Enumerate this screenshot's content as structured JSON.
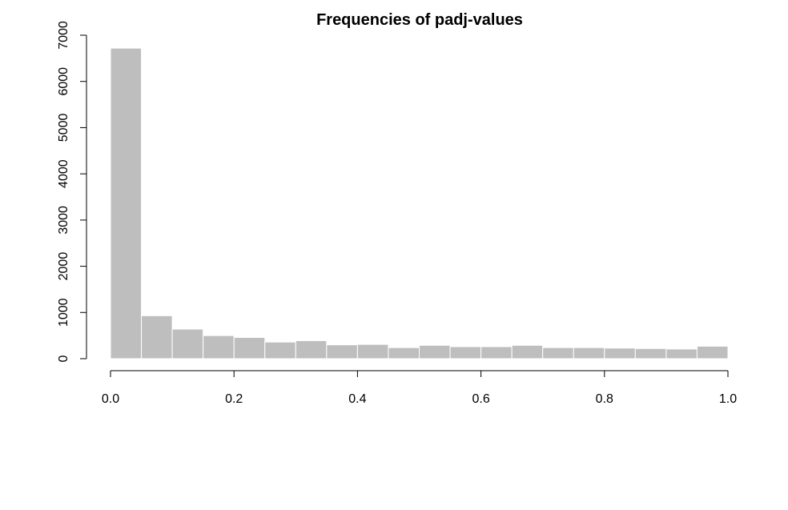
{
  "chart_data": {
    "type": "bar",
    "title": "Frequencies of padj-values",
    "xlabel": "",
    "ylabel": "",
    "bin_edges": [
      0.0,
      0.05,
      0.1,
      0.15,
      0.2,
      0.25,
      0.3,
      0.35,
      0.4,
      0.45,
      0.5,
      0.55,
      0.6,
      0.65,
      0.7,
      0.75,
      0.8,
      0.85,
      0.9,
      0.95,
      1.0
    ],
    "values": [
      6720,
      930,
      640,
      500,
      460,
      360,
      390,
      300,
      310,
      240,
      290,
      260,
      260,
      290,
      240,
      240,
      230,
      220,
      210,
      270
    ],
    "xlim": [
      0.0,
      1.0
    ],
    "ylim": [
      0,
      7000
    ],
    "x_ticks": [
      0.0,
      0.2,
      0.4,
      0.6,
      0.8,
      1.0
    ],
    "x_tick_labels": [
      "0.0",
      "0.2",
      "0.4",
      "0.6",
      "0.8",
      "1.0"
    ],
    "y_ticks": [
      0,
      1000,
      2000,
      3000,
      4000,
      5000,
      6000,
      7000
    ],
    "y_tick_labels": [
      "0",
      "1000",
      "2000",
      "3000",
      "4000",
      "5000",
      "6000",
      "7000"
    ],
    "bar_color": "#bebebe",
    "bar_border_color": "#ffffff",
    "grid": false
  }
}
